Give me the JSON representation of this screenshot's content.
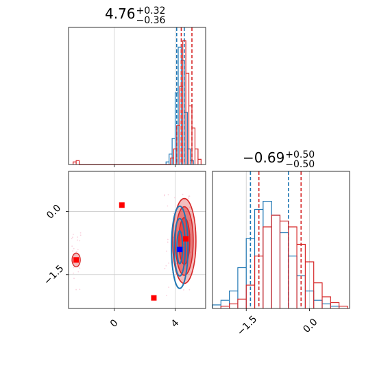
{
  "chart_data": [
    {
      "panel": "marginal-1",
      "type": "histogram",
      "title": {
        "value": "4.76",
        "plus": "+0.32",
        "minus": "−0.36"
      },
      "xlim": [
        -3.0,
        6.0
      ],
      "x_ticks": [
        0,
        4
      ],
      "grid": true,
      "colors": {
        "series_a": "#1f77b4",
        "series_b": "#d62728"
      },
      "series": [
        {
          "x": [
            3.5,
            3.7,
            3.9,
            4.1,
            4.3,
            4.5,
            4.7,
            4.9,
            5.1
          ],
          "values": [
            0.02,
            0.08,
            0.2,
            0.55,
            0.9,
            0.8,
            0.4,
            0.12,
            0.03
          ],
          "quantiles": [
            4.1,
            4.6
          ]
        },
        {
          "x": [
            -2.6,
            -2.4,
            3.8,
            4.0,
            4.2,
            4.4,
            4.6,
            4.8,
            5.0,
            5.2,
            5.4,
            5.6
          ],
          "values": [
            0.02,
            0.03,
            0.05,
            0.12,
            0.3,
            0.6,
            0.95,
            0.7,
            0.45,
            0.28,
            0.12,
            0.04
          ],
          "quantiles": [
            4.4,
            5.1
          ]
        }
      ]
    },
    {
      "panel": "joint",
      "type": "scatter",
      "xlim": [
        -3.0,
        6.0
      ],
      "ylim": [
        -2.3,
        0.95
      ],
      "x_ticks": [
        0,
        4
      ],
      "x_tick_labels": [
        "0",
        "4"
      ],
      "y_ticks": [
        0.0,
        -1.5
      ],
      "y_tick_labels": [
        "0.0",
        "−1.5"
      ],
      "grid": true,
      "colors": {
        "series_a": "#1f77b4",
        "series_b": "#d62728",
        "marker_a": "#0000ff",
        "marker_b": "#ff0000"
      },
      "markers_b": [
        [
          0.5,
          0.15
        ],
        [
          2.6,
          -2.05
        ],
        [
          -2.5,
          -1.15
        ],
        [
          4.7,
          -0.65
        ]
      ],
      "markers_a": [
        [
          4.3,
          -0.9
        ]
      ]
    },
    {
      "panel": "marginal-2",
      "type": "histogram",
      "title": {
        "value": "−0.69",
        "plus": "+0.50",
        "minus": "−0.50"
      },
      "xlim": [
        -2.3,
        0.95
      ],
      "x_ticks": [
        -1.5,
        0.0
      ],
      "x_tick_labels": [
        "−1.5",
        "0.0"
      ],
      "grid": true,
      "colors": {
        "series_a": "#1f77b4",
        "series_b": "#d62728"
      },
      "series": [
        {
          "x": [
            -2.2,
            -2.0,
            -1.8,
            -1.6,
            -1.4,
            -1.2,
            -1.0,
            -0.8,
            -0.6,
            -0.4,
            -0.2,
            0.0,
            0.2,
            0.4,
            0.6
          ],
          "values": [
            0.03,
            0.07,
            0.15,
            0.35,
            0.6,
            0.85,
            0.92,
            0.8,
            0.65,
            0.45,
            0.28,
            0.15,
            0.07,
            0.04,
            0.02
          ],
          "quantiles": [
            -1.4,
            -0.5
          ]
        },
        {
          "x": [
            -2.0,
            -1.8,
            -1.6,
            -1.4,
            -1.2,
            -1.0,
            -0.8,
            -0.6,
            -0.4,
            -0.2,
            0.0,
            0.2,
            0.4,
            0.6,
            0.8
          ],
          "values": [
            0.02,
            0.04,
            0.08,
            0.2,
            0.45,
            0.7,
            0.8,
            0.75,
            0.7,
            0.55,
            0.4,
            0.22,
            0.1,
            0.05,
            0.02
          ],
          "quantiles": [
            -1.2,
            -0.2
          ]
        }
      ]
    }
  ]
}
